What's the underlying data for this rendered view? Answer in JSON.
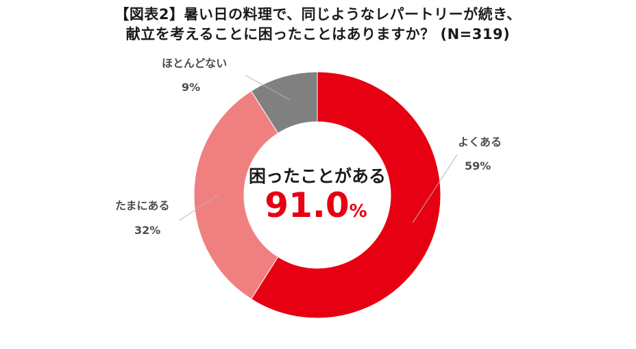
{
  "chart_data": {
    "type": "pie",
    "title_lines": [
      "【図表2】暑い日の料理で、同じようなレパートリーが続き、",
      "献立を考えることに困ったことはありますか？ (N=319)"
    ],
    "slices": [
      {
        "label": "よくある",
        "value": 59,
        "value_text": "59%",
        "color": "#e60012"
      },
      {
        "label": "たまにある",
        "value": 32,
        "value_text": "32%",
        "color": "#f08080"
      },
      {
        "label": "ほとんどない",
        "value": 9,
        "value_text": "9%",
        "color": "#808080"
      }
    ],
    "center": {
      "label": "困ったことがある",
      "value": "91.0",
      "unit": "%"
    }
  }
}
